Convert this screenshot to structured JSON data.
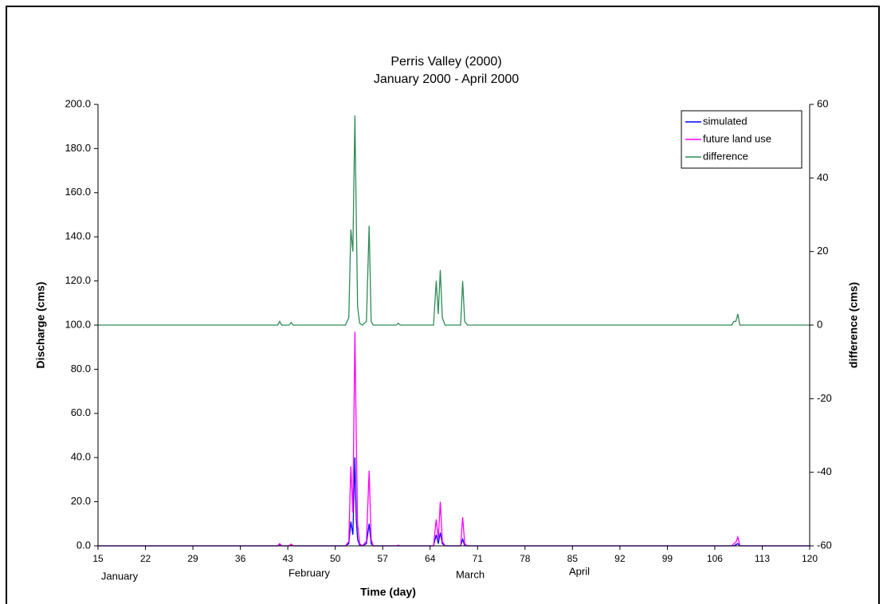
{
  "chart_data": {
    "type": "line",
    "title": "Perris Valley (2000)",
    "subtitle": "January 2000 - April 2000",
    "x_label": "Time (day)",
    "y_label": "Discharge (cms)",
    "y2_label": "difference (cms)",
    "month_labels": [
      "January",
      "February",
      "March",
      "April"
    ],
    "x": [
      15,
      41.5,
      41.8,
      42.1,
      43.2,
      43.5,
      43.8,
      51.5,
      52.0,
      52.3,
      52.6,
      52.9,
      53.1,
      53.3,
      53.6,
      54.0,
      54.6,
      55.0,
      55.3,
      55.6,
      59.0,
      59.3,
      59.6,
      64.5,
      64.9,
      65.2,
      65.5,
      65.8,
      66.2,
      68.5,
      68.8,
      69.1,
      69.5,
      108.5,
      108.8,
      109.1,
      109.4,
      109.7,
      120
    ],
    "series": [
      {
        "name": "simulated",
        "color": "#0000ff",
        "values": [
          0,
          0,
          0.3,
          0,
          0,
          0.2,
          0,
          0,
          1,
          11,
          5,
          40,
          12,
          3,
          0.3,
          0,
          1,
          10,
          1,
          0,
          0,
          0,
          0,
          0,
          5,
          1,
          6,
          1,
          0,
          0,
          3,
          0,
          0,
          0,
          0,
          0.5,
          1,
          0,
          0
        ]
      },
      {
        "name": "future land use",
        "color": "#ff00ff",
        "values": [
          0,
          0,
          1,
          0,
          0,
          0.8,
          0,
          0,
          2,
          36,
          15,
          97,
          50,
          10,
          1,
          0,
          2,
          34,
          3,
          0,
          0,
          0.3,
          0,
          0,
          12,
          3,
          20,
          2,
          0,
          0,
          13,
          1,
          0,
          0,
          1,
          1.5,
          4,
          0,
          0
        ]
      },
      {
        "name": "difference",
        "color": "#2e8b57",
        "axis": "y2",
        "values": [
          0,
          0,
          1,
          0,
          0,
          0.7,
          0,
          0,
          2,
          26,
          20,
          57,
          30,
          5,
          0.5,
          0,
          1,
          27,
          1,
          0,
          0,
          0.5,
          0,
          0,
          12,
          3,
          15,
          2,
          0,
          0,
          12,
          1,
          0,
          0,
          1,
          1,
          3,
          0,
          0
        ]
      }
    ],
    "xlim": [
      15,
      120
    ],
    "xticks": [
      15,
      22,
      29,
      36,
      43,
      50,
      57,
      64,
      71,
      78,
      85,
      92,
      99,
      106,
      113,
      120
    ],
    "ylim": [
      0,
      200
    ],
    "yticks": [
      {
        "value": 0,
        "label": "0.0"
      },
      {
        "value": 20,
        "label": "20.0"
      },
      {
        "value": 40,
        "label": "40.0"
      },
      {
        "value": 60,
        "label": "60.0"
      },
      {
        "value": 80,
        "label": "80.0"
      },
      {
        "value": 100,
        "label": "100.0"
      },
      {
        "value": 120,
        "label": "120.0"
      },
      {
        "value": 140,
        "label": "140.0"
      },
      {
        "value": 160,
        "label": "160.0"
      },
      {
        "value": 180,
        "label": "180.0"
      },
      {
        "value": 200,
        "label": "200.0"
      }
    ],
    "y2lim": [
      -60,
      60
    ],
    "y2ticks": [
      -60,
      -40,
      -20,
      0,
      20,
      40,
      60
    ],
    "grid": false,
    "legend": "top-right"
  }
}
